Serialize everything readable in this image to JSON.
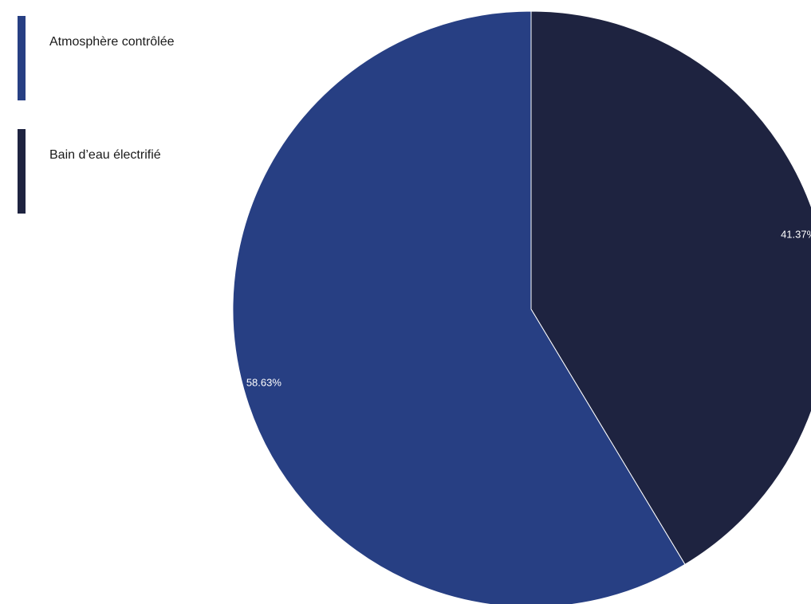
{
  "chart_data": {
    "type": "pie",
    "title": "",
    "legend_position": "top-left",
    "series": [
      {
        "name": "Bain d’eau électrifié",
        "value": 41.37,
        "label": "41.37%",
        "color": "#1e2340"
      },
      {
        "name": "Atmosphère contrôlée",
        "value": 58.63,
        "label": "58.63%",
        "color": "#273f83"
      }
    ],
    "legend": [
      {
        "label": "Atmosphère contrôlée",
        "color": "#273f83"
      },
      {
        "label": "Bain d’eau électrifié",
        "color": "#1e2340"
      }
    ]
  }
}
